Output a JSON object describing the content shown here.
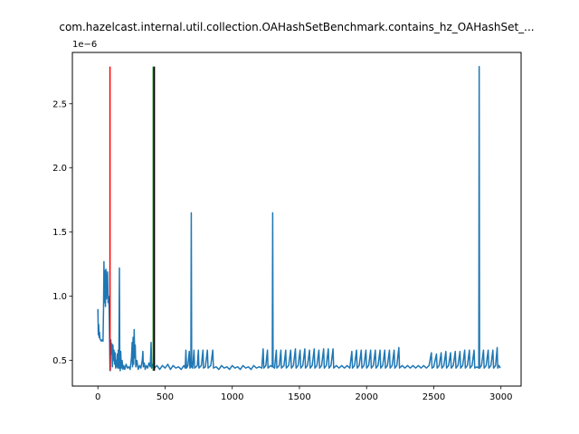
{
  "chart_data": {
    "type": "line",
    "title": "com.hazelcast.internal.util.collection.OAHashSetBenchmark.contains_hz_OAHashSet_...",
    "xlabel": "",
    "ylabel": "",
    "y_offset_label": "1e−6",
    "xlim": [
      -190,
      3150
    ],
    "ylim": [
      0.3,
      2.9
    ],
    "x_ticks": [
      0,
      500,
      1000,
      1500,
      2000,
      2500,
      3000
    ],
    "x_tick_labels": [
      "0",
      "500",
      "1000",
      "1500",
      "2000",
      "2500",
      "3000"
    ],
    "y_ticks": [
      0.5,
      1.0,
      1.5,
      2.0,
      2.5
    ],
    "y_tick_labels": [
      "0.5",
      "1.0",
      "1.5",
      "2.0",
      "2.5"
    ],
    "grid": false,
    "colors": {
      "series": "#1f77b4",
      "red_line": "#ff0000",
      "green_line": "#008000",
      "black_line": "#000000"
    },
    "vertical_lines": [
      {
        "x": 90,
        "y0": 0.42,
        "y1": 2.79,
        "color": "#ff0000"
      },
      {
        "x": 412,
        "y0": 0.42,
        "y1": 2.79,
        "color": "#008000"
      },
      {
        "x": 420,
        "y0": 0.42,
        "y1": 2.79,
        "color": "#000000"
      }
    ],
    "series": [
      {
        "color": "#1f77b4",
        "points": [
          [
            0,
            0.9
          ],
          [
            3,
            0.7
          ],
          [
            6,
            0.78
          ],
          [
            9,
            0.68
          ],
          [
            12,
            0.72
          ],
          [
            15,
            0.67
          ],
          [
            20,
            0.66
          ],
          [
            25,
            0.65
          ],
          [
            30,
            0.66
          ],
          [
            38,
            0.65
          ],
          [
            42,
            0.9
          ],
          [
            45,
            1.27
          ],
          [
            48,
            0.95
          ],
          [
            52,
            1.2
          ],
          [
            56,
            0.92
          ],
          [
            60,
            1.21
          ],
          [
            64,
            0.98
          ],
          [
            68,
            1.1
          ],
          [
            72,
            1.19
          ],
          [
            76,
            0.95
          ],
          [
            80,
            1.0
          ],
          [
            84,
            0.9
          ],
          [
            88,
            0.6
          ],
          [
            92,
            0.42
          ],
          [
            96,
            0.66
          ],
          [
            100,
            0.55
          ],
          [
            104,
            0.63
          ],
          [
            108,
            0.45
          ],
          [
            112,
            0.62
          ],
          [
            116,
            0.5
          ],
          [
            120,
            0.58
          ],
          [
            124,
            0.47
          ],
          [
            128,
            0.56
          ],
          [
            132,
            0.44
          ],
          [
            136,
            0.5
          ],
          [
            140,
            0.45
          ],
          [
            144,
            0.55
          ],
          [
            148,
            0.44
          ],
          [
            152,
            0.58
          ],
          [
            156,
            0.44
          ],
          [
            160,
            1.22
          ],
          [
            163,
            0.47
          ],
          [
            166,
            0.42
          ],
          [
            170,
            0.57
          ],
          [
            174,
            0.44
          ],
          [
            180,
            0.5
          ],
          [
            186,
            0.43
          ],
          [
            192,
            0.46
          ],
          [
            200,
            0.43
          ],
          [
            210,
            0.47
          ],
          [
            220,
            0.44
          ],
          [
            230,
            0.45
          ],
          [
            240,
            0.43
          ],
          [
            250,
            0.52
          ],
          [
            255,
            0.64
          ],
          [
            258,
            0.45
          ],
          [
            262,
            0.68
          ],
          [
            266,
            0.47
          ],
          [
            270,
            0.74
          ],
          [
            274,
            0.52
          ],
          [
            278,
            0.62
          ],
          [
            282,
            0.45
          ],
          [
            290,
            0.5
          ],
          [
            300,
            0.43
          ],
          [
            310,
            0.46
          ],
          [
            320,
            0.44
          ],
          [
            330,
            0.5
          ],
          [
            335,
            0.57
          ],
          [
            338,
            0.45
          ],
          [
            345,
            0.48
          ],
          [
            352,
            0.43
          ],
          [
            360,
            0.46
          ],
          [
            370,
            0.44
          ],
          [
            380,
            0.48
          ],
          [
            390,
            0.45
          ],
          [
            396,
            0.64
          ],
          [
            400,
            0.44
          ],
          [
            408,
            0.47
          ],
          [
            420,
            0.44
          ],
          [
            440,
            0.46
          ],
          [
            460,
            0.43
          ],
          [
            480,
            0.46
          ],
          [
            500,
            0.44
          ],
          [
            520,
            0.47
          ],
          [
            540,
            0.43
          ],
          [
            560,
            0.46
          ],
          [
            580,
            0.44
          ],
          [
            600,
            0.45
          ],
          [
            620,
            0.43
          ],
          [
            640,
            0.46
          ],
          [
            650,
            0.44
          ],
          [
            655,
            0.58
          ],
          [
            660,
            0.44
          ],
          [
            670,
            0.46
          ],
          [
            680,
            0.57
          ],
          [
            685,
            0.44
          ],
          [
            692,
            0.45
          ],
          [
            695,
            1.65
          ],
          [
            698,
            0.45
          ],
          [
            705,
            0.44
          ],
          [
            715,
            0.58
          ],
          [
            720,
            0.44
          ],
          [
            740,
            0.46
          ],
          [
            748,
            0.58
          ],
          [
            752,
            0.44
          ],
          [
            770,
            0.46
          ],
          [
            782,
            0.58
          ],
          [
            786,
            0.44
          ],
          [
            800,
            0.45
          ],
          [
            815,
            0.58
          ],
          [
            820,
            0.44
          ],
          [
            840,
            0.46
          ],
          [
            855,
            0.58
          ],
          [
            860,
            0.44
          ],
          [
            880,
            0.45
          ],
          [
            900,
            0.43
          ],
          [
            920,
            0.46
          ],
          [
            940,
            0.44
          ],
          [
            960,
            0.45
          ],
          [
            980,
            0.43
          ],
          [
            1000,
            0.46
          ],
          [
            1020,
            0.44
          ],
          [
            1040,
            0.45
          ],
          [
            1060,
            0.43
          ],
          [
            1080,
            0.46
          ],
          [
            1100,
            0.44
          ],
          [
            1120,
            0.45
          ],
          [
            1140,
            0.43
          ],
          [
            1160,
            0.46
          ],
          [
            1180,
            0.44
          ],
          [
            1200,
            0.45
          ],
          [
            1220,
            0.44
          ],
          [
            1230,
            0.59
          ],
          [
            1235,
            0.44
          ],
          [
            1250,
            0.46
          ],
          [
            1262,
            0.58
          ],
          [
            1266,
            0.44
          ],
          [
            1285,
            0.46
          ],
          [
            1298,
            0.45
          ],
          [
            1301,
            1.65
          ],
          [
            1304,
            0.45
          ],
          [
            1315,
            0.44
          ],
          [
            1328,
            0.58
          ],
          [
            1332,
            0.44
          ],
          [
            1350,
            0.46
          ],
          [
            1362,
            0.58
          ],
          [
            1366,
            0.44
          ],
          [
            1385,
            0.46
          ],
          [
            1398,
            0.58
          ],
          [
            1402,
            0.44
          ],
          [
            1420,
            0.46
          ],
          [
            1435,
            0.58
          ],
          [
            1440,
            0.44
          ],
          [
            1455,
            0.46
          ],
          [
            1470,
            0.59
          ],
          [
            1475,
            0.44
          ],
          [
            1490,
            0.46
          ],
          [
            1505,
            0.58
          ],
          [
            1510,
            0.44
          ],
          [
            1525,
            0.46
          ],
          [
            1540,
            0.59
          ],
          [
            1545,
            0.44
          ],
          [
            1560,
            0.46
          ],
          [
            1575,
            0.58
          ],
          [
            1580,
            0.44
          ],
          [
            1595,
            0.46
          ],
          [
            1610,
            0.59
          ],
          [
            1615,
            0.44
          ],
          [
            1630,
            0.46
          ],
          [
            1645,
            0.58
          ],
          [
            1650,
            0.44
          ],
          [
            1665,
            0.46
          ],
          [
            1680,
            0.59
          ],
          [
            1685,
            0.44
          ],
          [
            1700,
            0.46
          ],
          [
            1715,
            0.59
          ],
          [
            1720,
            0.44
          ],
          [
            1735,
            0.46
          ],
          [
            1750,
            0.59
          ],
          [
            1755,
            0.44
          ],
          [
            1775,
            0.46
          ],
          [
            1795,
            0.44
          ],
          [
            1815,
            0.46
          ],
          [
            1835,
            0.44
          ],
          [
            1855,
            0.46
          ],
          [
            1875,
            0.44
          ],
          [
            1890,
            0.57
          ],
          [
            1895,
            0.44
          ],
          [
            1910,
            0.46
          ],
          [
            1925,
            0.58
          ],
          [
            1930,
            0.44
          ],
          [
            1945,
            0.46
          ],
          [
            1960,
            0.58
          ],
          [
            1965,
            0.44
          ],
          [
            1980,
            0.46
          ],
          [
            1995,
            0.58
          ],
          [
            2000,
            0.44
          ],
          [
            2015,
            0.46
          ],
          [
            2030,
            0.58
          ],
          [
            2035,
            0.44
          ],
          [
            2050,
            0.46
          ],
          [
            2065,
            0.58
          ],
          [
            2070,
            0.44
          ],
          [
            2085,
            0.46
          ],
          [
            2100,
            0.58
          ],
          [
            2105,
            0.44
          ],
          [
            2120,
            0.46
          ],
          [
            2135,
            0.58
          ],
          [
            2140,
            0.44
          ],
          [
            2155,
            0.46
          ],
          [
            2170,
            0.58
          ],
          [
            2175,
            0.44
          ],
          [
            2190,
            0.46
          ],
          [
            2205,
            0.58
          ],
          [
            2210,
            0.44
          ],
          [
            2225,
            0.46
          ],
          [
            2240,
            0.6
          ],
          [
            2245,
            0.44
          ],
          [
            2265,
            0.46
          ],
          [
            2285,
            0.44
          ],
          [
            2305,
            0.46
          ],
          [
            2325,
            0.44
          ],
          [
            2345,
            0.46
          ],
          [
            2365,
            0.44
          ],
          [
            2385,
            0.46
          ],
          [
            2405,
            0.44
          ],
          [
            2425,
            0.46
          ],
          [
            2445,
            0.44
          ],
          [
            2465,
            0.46
          ],
          [
            2482,
            0.56
          ],
          [
            2487,
            0.44
          ],
          [
            2500,
            0.45
          ],
          [
            2520,
            0.55
          ],
          [
            2525,
            0.44
          ],
          [
            2540,
            0.46
          ],
          [
            2555,
            0.56
          ],
          [
            2560,
            0.44
          ],
          [
            2575,
            0.46
          ],
          [
            2590,
            0.57
          ],
          [
            2595,
            0.44
          ],
          [
            2610,
            0.46
          ],
          [
            2625,
            0.56
          ],
          [
            2630,
            0.44
          ],
          [
            2645,
            0.46
          ],
          [
            2660,
            0.57
          ],
          [
            2665,
            0.44
          ],
          [
            2680,
            0.46
          ],
          [
            2695,
            0.57
          ],
          [
            2700,
            0.44
          ],
          [
            2715,
            0.46
          ],
          [
            2730,
            0.58
          ],
          [
            2735,
            0.44
          ],
          [
            2750,
            0.46
          ],
          [
            2765,
            0.58
          ],
          [
            2770,
            0.44
          ],
          [
            2785,
            0.46
          ],
          [
            2800,
            0.58
          ],
          [
            2805,
            0.44
          ],
          [
            2820,
            0.45
          ],
          [
            2835,
            0.44
          ],
          [
            2838,
            2.79
          ],
          [
            2841,
            0.44
          ],
          [
            2855,
            0.46
          ],
          [
            2870,
            0.58
          ],
          [
            2875,
            0.44
          ],
          [
            2890,
            0.46
          ],
          [
            2905,
            0.58
          ],
          [
            2910,
            0.44
          ],
          [
            2925,
            0.46
          ],
          [
            2940,
            0.58
          ],
          [
            2945,
            0.44
          ],
          [
            2960,
            0.46
          ],
          [
            2972,
            0.6
          ],
          [
            2976,
            0.44
          ],
          [
            2985,
            0.46
          ],
          [
            2995,
            0.44
          ]
        ]
      }
    ]
  }
}
